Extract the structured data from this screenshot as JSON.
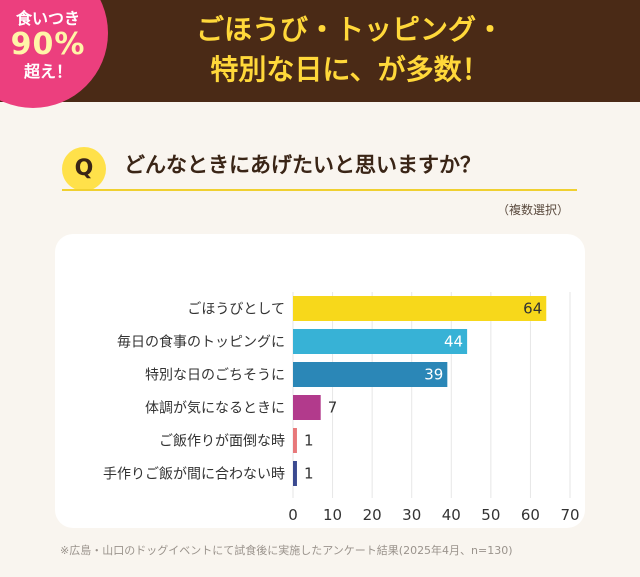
{
  "badge": {
    "line1": "食いつき",
    "line2": "90%",
    "line3": "超え！"
  },
  "headline": {
    "line1": "ごほうび・トッピング・",
    "line2": "特別な日に、が多数！"
  },
  "question": {
    "mark": "Q",
    "text": "どんなときにあげたいと思いますか？",
    "note": "（複数選択）"
  },
  "footnote": "※広島・山口のドッグイベントにて試食後に実施したアンケート結果(2025年4月、n=130)",
  "chart_data": {
    "type": "bar",
    "orientation": "horizontal",
    "categories": [
      "ごほうびとして",
      "毎日の食事のトッピングに",
      "特別な日のごちそうに",
      "体調が気になるときに",
      "ご飯作りが面倒な時",
      "手作りご飯が間に合わない時"
    ],
    "values": [
      64,
      44,
      39,
      7,
      1,
      1
    ],
    "colors": [
      "#f7d81b",
      "#37b2d6",
      "#2b87b7",
      "#b23a8c",
      "#e8787a",
      "#3b4a90"
    ],
    "label_colors": [
      "#333333",
      "#ffffff",
      "#ffffff",
      "#ffffff",
      "#333333",
      "#333333"
    ],
    "xlim": [
      0,
      70
    ],
    "xticks": [
      0,
      10,
      20,
      30,
      40,
      50,
      60,
      70
    ],
    "grid": true
  }
}
